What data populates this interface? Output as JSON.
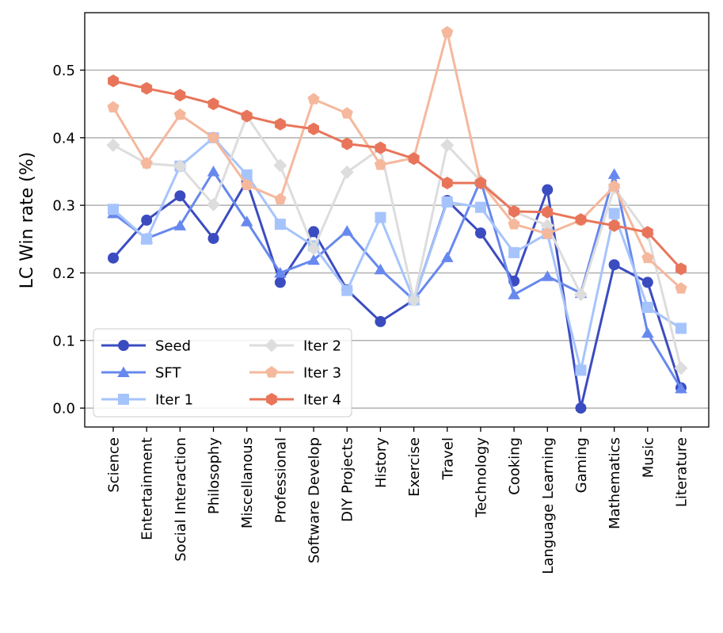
{
  "chart_data": {
    "type": "line",
    "title": "",
    "xlabel": "",
    "ylabel": "LC Win rate (%)",
    "ylim": [
      -0.028,
      0.585
    ],
    "yticks": [
      "0.0",
      "0.1",
      "0.2",
      "0.3",
      "0.4",
      "0.5"
    ],
    "grid": "horizontal",
    "legend_position": "lower-left",
    "categories": [
      "Science",
      "Entertainment",
      "Social Interaction",
      "Philosophy",
      "Miscellanous",
      "Professional",
      "Software Develop",
      "DIY Projects",
      "History",
      "Exercise",
      "Travel",
      "Technology",
      "Cooking",
      "Language Learning",
      "Gaming",
      "Mathematics",
      "Music",
      "Literature"
    ],
    "series": [
      {
        "name": "Seed",
        "color": "#3b4cc0",
        "marker": "circle",
        "values": [
          0.222,
          0.278,
          0.314,
          0.251,
          0.336,
          0.186,
          0.261,
          0.175,
          0.128,
          0.16,
          0.307,
          0.259,
          0.188,
          0.323,
          0.0,
          0.212,
          0.186,
          0.03
        ]
      },
      {
        "name": "SFT",
        "color": "#6788ee",
        "marker": "triangle",
        "values": [
          0.288,
          0.251,
          0.27,
          0.35,
          0.276,
          0.2,
          0.219,
          0.262,
          0.205,
          0.16,
          0.223,
          0.337,
          0.168,
          0.195,
          0.17,
          0.346,
          0.111,
          0.029
        ]
      },
      {
        "name": "Iter 1",
        "color": "#a6c4fc",
        "marker": "square",
        "values": [
          0.294,
          0.25,
          0.358,
          0.4,
          0.345,
          0.272,
          0.24,
          0.174,
          0.282,
          0.16,
          0.305,
          0.297,
          0.23,
          0.258,
          0.056,
          0.288,
          0.149,
          0.118
        ]
      },
      {
        "name": "Iter 2",
        "color": "#dddddd",
        "marker": "diamond",
        "values": [
          0.389,
          0.362,
          0.358,
          0.301,
          0.432,
          0.359,
          0.236,
          0.349,
          0.384,
          0.16,
          0.389,
          0.336,
          0.291,
          0.27,
          0.168,
          0.326,
          0.258,
          0.059
        ]
      },
      {
        "name": "Iter 3",
        "color": "#f5b89d",
        "marker": "pentagon",
        "values": [
          0.445,
          0.362,
          0.434,
          0.4,
          0.33,
          0.309,
          0.457,
          0.436,
          0.36,
          0.37,
          0.556,
          0.334,
          0.272,
          0.258,
          0.278,
          0.328,
          0.222,
          0.177
        ]
      },
      {
        "name": "Iter 4",
        "color": "#e8755a",
        "marker": "hexagon",
        "values": [
          0.484,
          0.473,
          0.463,
          0.45,
          0.432,
          0.42,
          0.413,
          0.391,
          0.385,
          0.369,
          0.333,
          0.333,
          0.291,
          0.29,
          0.279,
          0.27,
          0.26,
          0.206
        ]
      }
    ]
  }
}
